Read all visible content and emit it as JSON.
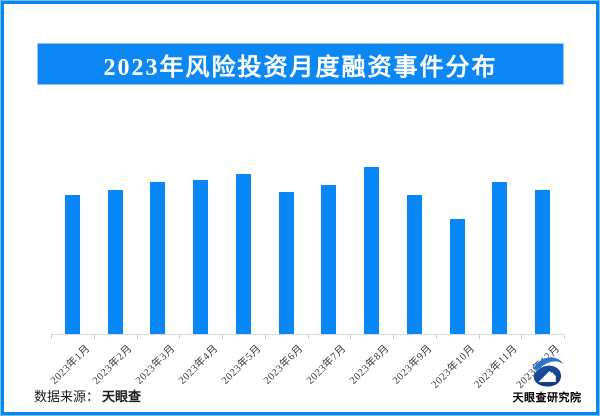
{
  "title": {
    "text": "2023年风险投资月度融资事件分布",
    "bg_color": "#0d87f3",
    "text_color": "#ffffff"
  },
  "chart_data": {
    "type": "bar",
    "title": "2023年风险投资月度融资事件分布",
    "categories": [
      "2023年1月",
      "2023年2月",
      "2023年3月",
      "2023年4月",
      "2023年5月",
      "2023年6月",
      "2023年7月",
      "2023年8月",
      "2023年9月",
      "2023年10月",
      "2023年11月",
      "2023年12月"
    ],
    "values": [
      83,
      86,
      91,
      92,
      96,
      85,
      89,
      100,
      83,
      69,
      91,
      86
    ],
    "values_note": "y-axis has no labels or gridlines; values are relative bar heights with the tallest month (2023年8月) = 100",
    "xlabel": "",
    "ylabel": "",
    "ylim": [
      0,
      100
    ],
    "grid": false,
    "legend": "none",
    "bar_color": "#0986f7",
    "axis_color": "#d9d9d9",
    "tick_label_color": "#3a3a3a",
    "x_tick_rotation_deg": 45
  },
  "footer": {
    "source_label": "数据来源：",
    "source_value": "天眼查"
  },
  "logo": {
    "name": "天眼查研究院",
    "text_color": "#1d3f6e",
    "swoosh_color": "#2e72d2",
    "body_color_top": "#1e55ae",
    "body_color_bottom": "#123a7c",
    "house_color": "#ffffff"
  },
  "frame": {
    "outer_border_color": "#74c0fa",
    "inner_border_color": "#0b85f2",
    "background": "#ffffff"
  }
}
